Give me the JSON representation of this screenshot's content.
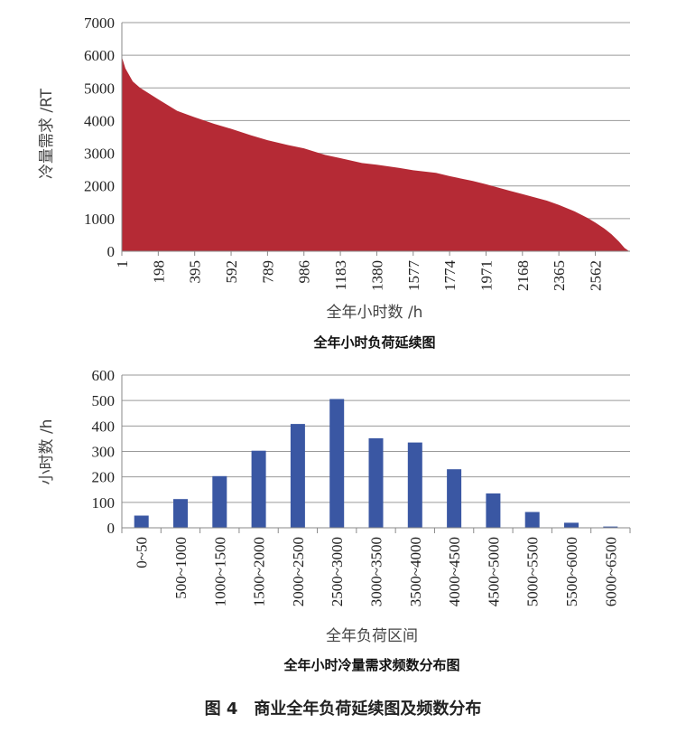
{
  "figure_caption": "图 4　商业全年负荷延续图及频数分布",
  "chart_data": [
    {
      "type": "area",
      "title": "全年小时负荷延续图",
      "xlabel": "全年小时数 /h",
      "ylabel": "冷量需求 /RT",
      "ylim": [
        0,
        7000
      ],
      "yticks": [
        0,
        1000,
        2000,
        3000,
        4000,
        5000,
        6000,
        7000
      ],
      "xlim": [
        1,
        2750
      ],
      "xticks": [
        1,
        198,
        395,
        592,
        789,
        986,
        1183,
        1380,
        1577,
        1774,
        1971,
        2168,
        2365,
        2562
      ],
      "grid": true,
      "color": "#b52a35",
      "x": [
        1,
        20,
        60,
        100,
        198,
        300,
        395,
        500,
        592,
        700,
        789,
        900,
        986,
        1100,
        1183,
        1300,
        1380,
        1500,
        1577,
        1700,
        1774,
        1900,
        1971,
        2100,
        2168,
        2300,
        2365,
        2450,
        2520,
        2562,
        2610,
        2650,
        2690,
        2720,
        2740,
        2750
      ],
      "y": [
        5950,
        5600,
        5200,
        5000,
        4650,
        4300,
        4100,
        3900,
        3750,
        3550,
        3400,
        3250,
        3150,
        2950,
        2850,
        2700,
        2650,
        2550,
        2480,
        2400,
        2300,
        2150,
        2050,
        1850,
        1750,
        1550,
        1420,
        1220,
        1020,
        880,
        700,
        520,
        300,
        100,
        20,
        0
      ]
    },
    {
      "type": "bar",
      "title": "全年小时冷量需求频数分布图",
      "xlabel": "全年负荷区间",
      "ylabel": "小时数 /h",
      "ylim": [
        0,
        600
      ],
      "yticks": [
        0,
        100,
        200,
        300,
        400,
        500,
        600
      ],
      "grid": true,
      "color": "#3a57a3",
      "categories": [
        "0~50",
        "500~1000",
        "1000~1500",
        "1500~2000",
        "2000~2500",
        "2500~3000",
        "3000~3500",
        "3500~4000",
        "4000~4500",
        "4500~5000",
        "5000~5500",
        "5500~6000",
        "6000~6500"
      ],
      "values": [
        48,
        113,
        203,
        303,
        408,
        506,
        352,
        335,
        230,
        135,
        62,
        20,
        5
      ]
    }
  ]
}
